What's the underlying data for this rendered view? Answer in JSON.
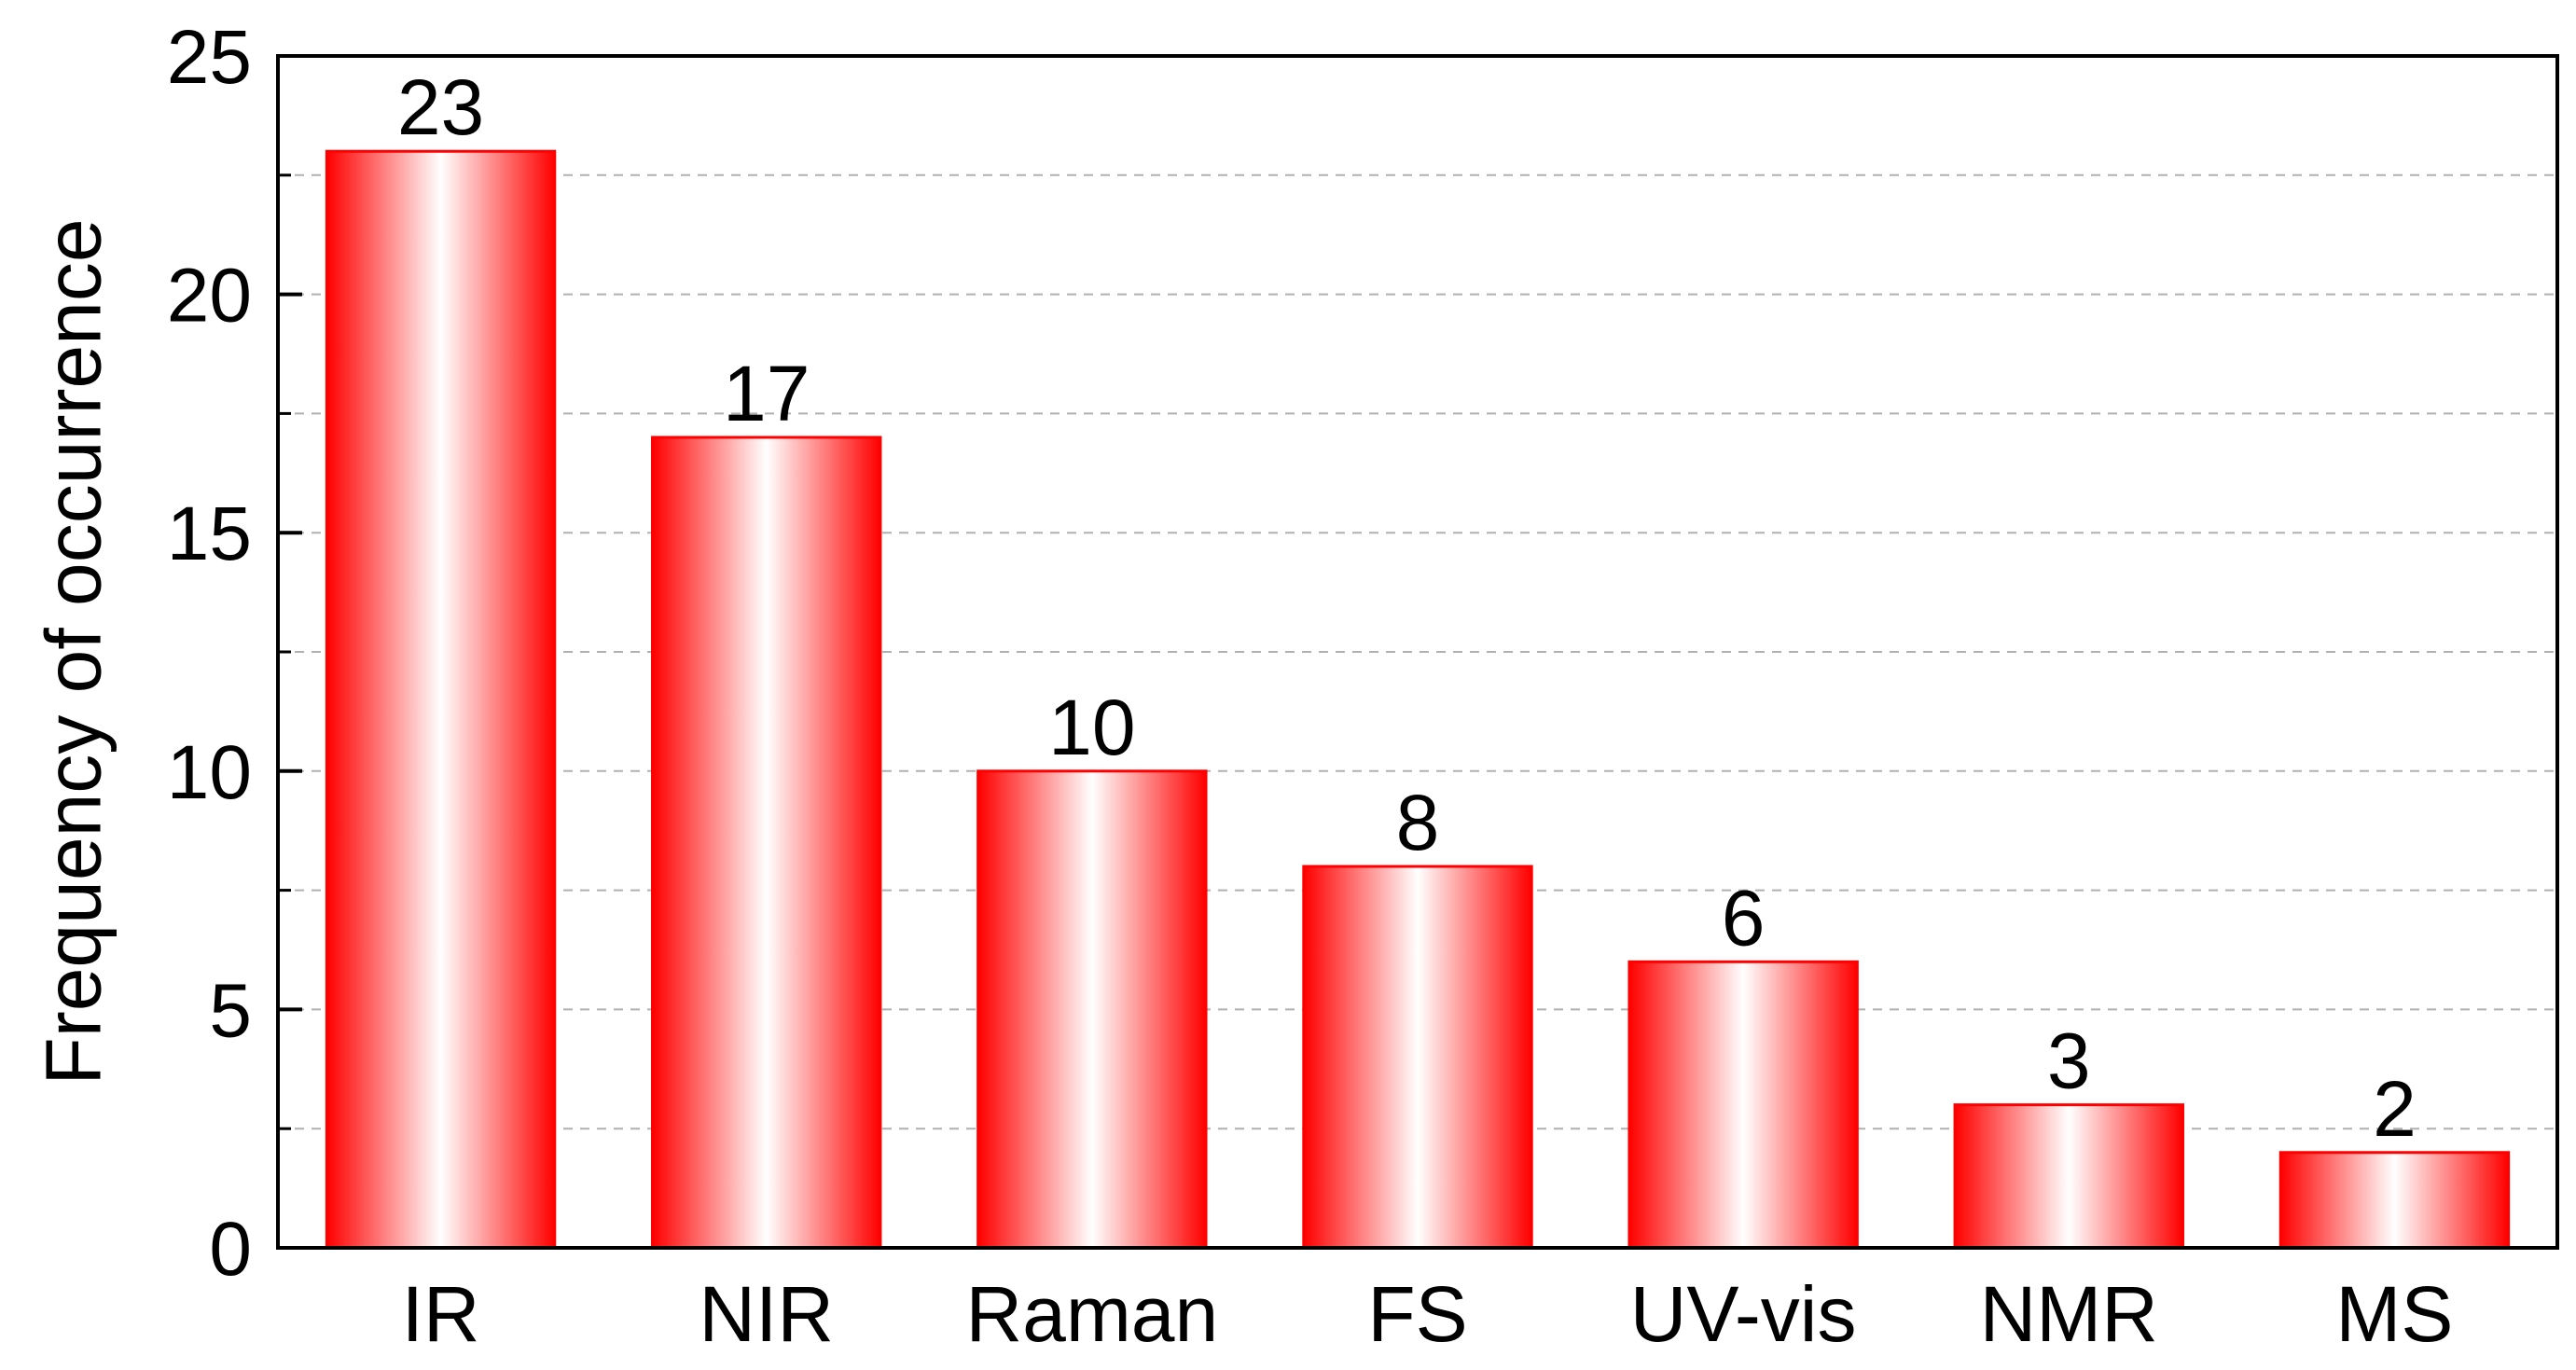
{
  "chart_data": {
    "type": "bar",
    "categories": [
      "IR",
      "NIR",
      "Raman",
      "FS",
      "UV-vis",
      "NMR",
      "MS"
    ],
    "values": [
      23,
      17,
      10,
      8,
      6,
      3,
      2
    ],
    "data_labels": [
      "23",
      "17",
      "10",
      "8",
      "6",
      "3",
      "2"
    ],
    "title": "",
    "xlabel": "",
    "ylabel": "Frequency of occurrence",
    "ylim": [
      0,
      25
    ],
    "yticks": [
      0,
      5,
      10,
      15,
      20,
      25
    ],
    "ytick_labels": [
      "0",
      "5",
      "10",
      "15",
      "20",
      "25"
    ],
    "grid": true,
    "grid_style": "dashed",
    "legend": "none",
    "colors": {
      "bar_edge": "#ff0000",
      "bar_fill_edge": "#ff0000",
      "bar_fill_center": "#ffffff",
      "grid": "#b0b0b0",
      "axis": "#000000"
    }
  }
}
